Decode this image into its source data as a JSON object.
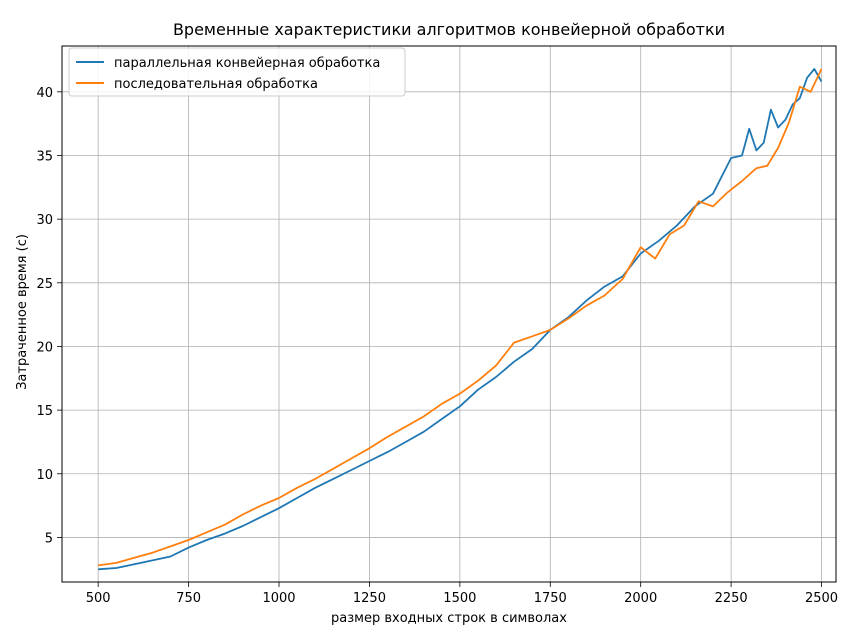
{
  "chart_data": {
    "type": "line",
    "title": "Временные характеристики алгоритмов конвейерной обработки",
    "xlabel": "размер входных строк в символах",
    "ylabel": "Затраченное время (с)",
    "xlim": [
      400,
      2540
    ],
    "ylim": [
      1.5,
      43.6
    ],
    "xticks": [
      500,
      750,
      1000,
      1250,
      1500,
      1750,
      2000,
      2250,
      2500
    ],
    "yticks": [
      5,
      10,
      15,
      20,
      25,
      30,
      35,
      40
    ],
    "grid": true,
    "legend_position": "top-left",
    "series": [
      {
        "name": "параллельная конвейерная обработка",
        "color": "#1f77b4",
        "x": [
          500,
          550,
          600,
          650,
          700,
          750,
          800,
          850,
          900,
          950,
          1000,
          1050,
          1100,
          1150,
          1200,
          1250,
          1300,
          1350,
          1400,
          1450,
          1500,
          1550,
          1600,
          1650,
          1700,
          1750,
          1800,
          1850,
          1900,
          1950,
          2000,
          2050,
          2100,
          2150,
          2200,
          2250,
          2280,
          2300,
          2320,
          2340,
          2360,
          2380,
          2400,
          2420,
          2440,
          2460,
          2480,
          2500
        ],
        "y": [
          2.5,
          2.6,
          2.9,
          3.2,
          3.5,
          4.2,
          4.8,
          5.3,
          5.9,
          6.6,
          7.3,
          8.1,
          8.9,
          9.6,
          10.3,
          11.0,
          11.7,
          12.5,
          13.3,
          14.3,
          15.3,
          16.6,
          17.6,
          18.8,
          19.8,
          21.3,
          22.3,
          23.6,
          24.7,
          25.5,
          27.3,
          28.3,
          29.5,
          31.0,
          32.0,
          34.8,
          35.0,
          37.1,
          35.4,
          36.0,
          38.6,
          37.2,
          37.8,
          39.0,
          39.5,
          41.1,
          41.8,
          40.8
        ]
      },
      {
        "name": "последовательная обработка",
        "color": "#ff7f0e",
        "x": [
          500,
          550,
          600,
          650,
          700,
          750,
          800,
          850,
          900,
          950,
          1000,
          1050,
          1100,
          1150,
          1200,
          1250,
          1300,
          1350,
          1400,
          1450,
          1500,
          1550,
          1600,
          1650,
          1700,
          1750,
          1800,
          1850,
          1900,
          1950,
          2000,
          2040,
          2080,
          2120,
          2160,
          2200,
          2240,
          2280,
          2320,
          2350,
          2380,
          2410,
          2440,
          2470,
          2500
        ],
        "y": [
          2.8,
          3.0,
          3.4,
          3.8,
          4.3,
          4.8,
          5.4,
          6.0,
          6.8,
          7.5,
          8.1,
          8.9,
          9.6,
          10.4,
          11.2,
          12.0,
          12.9,
          13.7,
          14.5,
          15.5,
          16.3,
          17.3,
          18.5,
          20.3,
          20.8,
          21.3,
          22.2,
          23.2,
          24.0,
          25.3,
          27.8,
          26.9,
          28.8,
          29.5,
          31.4,
          31.0,
          32.1,
          33.0,
          34.0,
          34.2,
          35.6,
          37.6,
          40.4,
          40.0,
          41.8
        ]
      }
    ]
  }
}
